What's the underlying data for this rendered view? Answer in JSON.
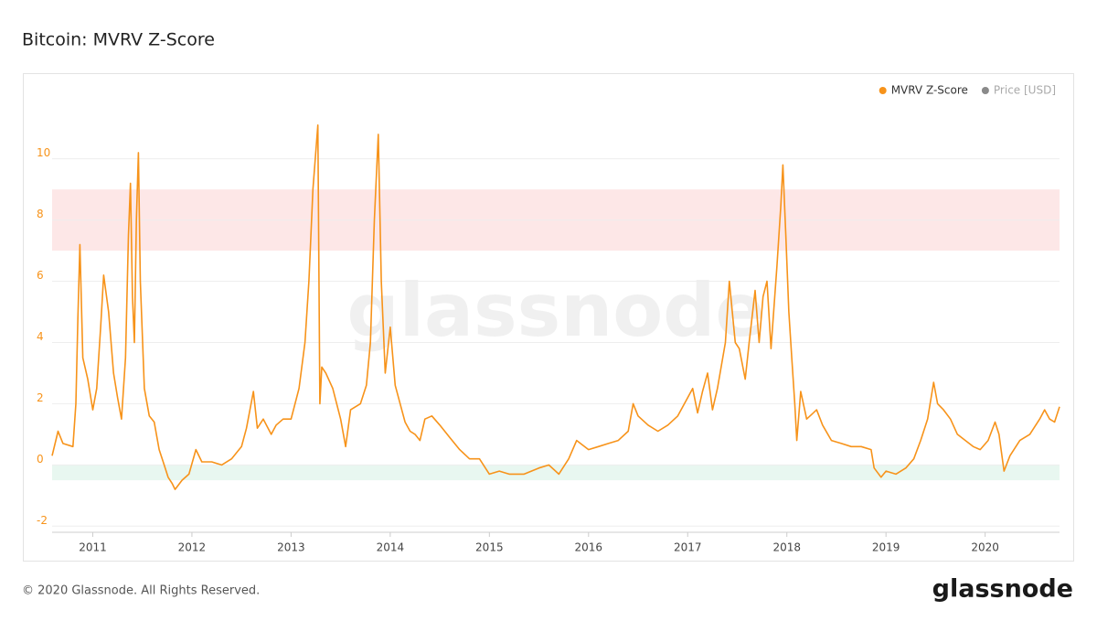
{
  "chart_data": {
    "type": "line",
    "title": "Bitcoin: MVRV Z-Score",
    "footer": "© 2020 Glassnode. All Rights Reserved.",
    "logo": "glassnode",
    "watermark": "glassnode",
    "grid": true,
    "legend_position": "top-right",
    "inactive_legend": {
      "name": "Price [USD]",
      "color": "#8a8a8a"
    },
    "bands": [
      {
        "from": 7,
        "to": 9,
        "color": "#fde7e7"
      },
      {
        "from": -0.5,
        "to": 0,
        "color": "#e8f7f0"
      }
    ],
    "xlim": [
      2010.59,
      2020.75
    ],
    "xticks": [
      2011,
      2012,
      2013,
      2014,
      2015,
      2016,
      2017,
      2018,
      2019,
      2020
    ],
    "ylim": [
      -2.2,
      12.2
    ],
    "yticks": [
      -2,
      0,
      2,
      4,
      6,
      8,
      10
    ],
    "x": [
      2010.59,
      2010.65,
      2010.7,
      2010.8,
      2010.83,
      2010.85,
      2010.87,
      2010.9,
      2010.95,
      2011.0,
      2011.04,
      2011.08,
      2011.11,
      2011.16,
      2011.21,
      2011.25,
      2011.29,
      2011.33,
      2011.36,
      2011.38,
      2011.4,
      2011.42,
      2011.44,
      2011.46,
      2011.48,
      2011.52,
      2011.57,
      2011.62,
      2011.67,
      2011.72,
      2011.76,
      2011.8,
      2011.83,
      2011.9,
      2011.97,
      2012.04,
      2012.1,
      2012.2,
      2012.3,
      2012.4,
      2012.5,
      2012.55,
      2012.62,
      2012.66,
      2012.72,
      2012.8,
      2012.85,
      2012.92,
      2013.0,
      2013.08,
      2013.14,
      2013.18,
      2013.22,
      2013.27,
      2013.29,
      2013.31,
      2013.35,
      2013.42,
      2013.5,
      2013.55,
      2013.6,
      2013.7,
      2013.76,
      2013.8,
      2013.84,
      2013.88,
      2013.91,
      2013.95,
      2014.0,
      2014.05,
      2014.1,
      2014.15,
      2014.2,
      2014.25,
      2014.3,
      2014.35,
      2014.42,
      2014.5,
      2014.6,
      2014.7,
      2014.8,
      2014.9,
      2015.0,
      2015.1,
      2015.2,
      2015.35,
      2015.5,
      2015.6,
      2015.7,
      2015.8,
      2015.88,
      2016.0,
      2016.1,
      2016.2,
      2016.3,
      2016.4,
      2016.45,
      2016.5,
      2016.6,
      2016.7,
      2016.8,
      2016.9,
      2017.0,
      2017.05,
      2017.1,
      2017.15,
      2017.2,
      2017.25,
      2017.3,
      2017.38,
      2017.42,
      2017.48,
      2017.52,
      2017.58,
      2017.62,
      2017.68,
      2017.72,
      2017.76,
      2017.8,
      2017.84,
      2017.9,
      2017.94,
      2017.96,
      2017.99,
      2018.02,
      2018.05,
      2018.08,
      2018.1,
      2018.14,
      2018.2,
      2018.3,
      2018.36,
      2018.45,
      2018.55,
      2018.65,
      2018.75,
      2018.85,
      2018.88,
      2018.95,
      2019.0,
      2019.1,
      2019.2,
      2019.28,
      2019.35,
      2019.42,
      2019.48,
      2019.52,
      2019.58,
      2019.65,
      2019.72,
      2019.8,
      2019.88,
      2019.95,
      2020.03,
      2020.1,
      2020.14,
      2020.19,
      2020.25,
      2020.35,
      2020.45,
      2020.55,
      2020.6,
      2020.65,
      2020.7,
      2020.75
    ],
    "series": [
      {
        "name": "MVRV Z-Score",
        "color": "#f7931a",
        "values": [
          0.3,
          1.1,
          0.7,
          0.6,
          2.0,
          4.8,
          7.2,
          3.5,
          2.8,
          1.8,
          2.5,
          4.5,
          6.2,
          5.0,
          3.0,
          2.2,
          1.5,
          3.5,
          7.5,
          9.2,
          5.5,
          4.0,
          8.0,
          10.2,
          6.0,
          2.5,
          1.6,
          1.4,
          0.5,
          0.0,
          -0.4,
          -0.6,
          -0.8,
          -0.5,
          -0.3,
          0.5,
          0.1,
          0.1,
          0.0,
          0.2,
          0.6,
          1.2,
          2.4,
          1.2,
          1.5,
          1.0,
          1.3,
          1.5,
          1.5,
          2.5,
          4.0,
          6.0,
          9.0,
          11.1,
          2.0,
          3.2,
          3.0,
          2.5,
          1.5,
          0.6,
          1.8,
          2.0,
          2.6,
          4.0,
          8.0,
          10.8,
          6.0,
          3.0,
          4.5,
          2.6,
          2.0,
          1.4,
          1.1,
          1.0,
          0.8,
          1.5,
          1.6,
          1.3,
          0.9,
          0.5,
          0.2,
          0.2,
          -0.3,
          -0.2,
          -0.3,
          -0.3,
          -0.1,
          0.0,
          -0.3,
          0.2,
          0.8,
          0.5,
          0.6,
          0.7,
          0.8,
          1.1,
          2.0,
          1.6,
          1.3,
          1.1,
          1.3,
          1.6,
          2.2,
          2.5,
          1.7,
          2.4,
          3.0,
          1.8,
          2.5,
          4.0,
          6.0,
          4.0,
          3.8,
          2.8,
          4.0,
          5.7,
          4.0,
          5.5,
          6.0,
          3.8,
          6.5,
          8.5,
          9.8,
          7.5,
          5.0,
          3.5,
          2.0,
          0.8,
          2.4,
          1.5,
          1.8,
          1.3,
          0.8,
          0.7,
          0.6,
          0.6,
          0.5,
          -0.1,
          -0.4,
          -0.2,
          -0.3,
          -0.1,
          0.2,
          0.8,
          1.5,
          2.7,
          2.0,
          1.8,
          1.5,
          1.0,
          0.8,
          0.6,
          0.5,
          0.8,
          1.4,
          1.0,
          -0.2,
          0.3,
          0.8,
          1.0,
          1.5,
          1.8,
          1.5,
          1.4,
          1.9
        ]
      }
    ]
  }
}
